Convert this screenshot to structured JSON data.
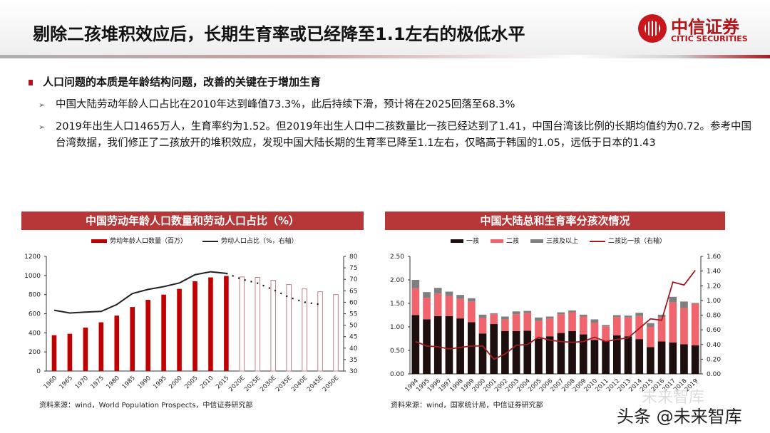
{
  "header": {
    "title": "剔除二孩堆积效应后，长期生育率或已经降至1.1左右的极低水平",
    "logo_cn": "中信证券",
    "logo_en": "CITIC SECURITIES"
  },
  "bullets": {
    "main": "人口问题的本质是年龄结构问题，改善的关键在于增加生育",
    "sub": [
      "中国大陆劳动年龄人口占比在2010年达到峰值73.3%，此后持续下滑，预计将在2025回落至68.3%",
      "2019年出生人口1465万人，生育率约为1.52。但2019年出生人口中二孩数量比一孩已经达到了1.41，中国台湾该比例的长期均值约为0.72。参考中国台湾数据，我们修正了二孩放开的堆积效应，发现中国大陆长期的生育率已降至1.1左右，仅略高于韩国的1.05，远低于日本的1.43"
    ]
  },
  "watermark": {
    "text": "头条 @未来智库",
    "faint": "未来智库"
  },
  "colors": {
    "accent": "#b73638",
    "bar_red": "#c00000",
    "one": "#1e0f0f",
    "two": "#f0646e",
    "three": "#7f7f7f",
    "ratio": "#a01c22"
  },
  "chart_data": [
    {
      "type": "bar+line",
      "title": "中国劳动年龄人口数量和劳动人口占比（%）",
      "source": "资料来源：wind，World Population Prospects，中信证券研究部",
      "categories": [
        "1960",
        "1965",
        "1970",
        "1975",
        "1980",
        "1985",
        "1990",
        "1995",
        "2000",
        "2005",
        "2010",
        "2015",
        "2020E",
        "2025E",
        "2030E",
        "2035E",
        "2040E",
        "2045E",
        "2050E"
      ],
      "series": [
        {
          "name": "劳动年龄人口数量（百万）",
          "type": "bar",
          "axis": "left",
          "values": [
            375,
            390,
            455,
            510,
            580,
            670,
            745,
            800,
            860,
            940,
            980,
            995,
            985,
            980,
            950,
            905,
            860,
            830,
            800
          ],
          "projected_from": "2020E"
        },
        {
          "name": "劳动人口占比（%，右轴）",
          "type": "line",
          "axis": "right",
          "values": [
            56.5,
            55.3,
            55.7,
            56.0,
            59.0,
            63.8,
            65.6,
            66.8,
            68.4,
            72.0,
            73.3,
            72.6,
            70.0,
            68.3,
            65.5,
            62.2,
            60.0,
            59.0,
            null
          ],
          "projected_from": "2020E",
          "projected_style": "dotted"
        }
      ],
      "left_axis": {
        "ylim": [
          0,
          1200
        ],
        "ticks": [
          0,
          200,
          400,
          600,
          800,
          1000,
          1200
        ]
      },
      "right_axis": {
        "ylim": [
          30,
          80
        ],
        "ticks": [
          30,
          35,
          40,
          45,
          50,
          55,
          60,
          65,
          70,
          75,
          80
        ]
      },
      "legend": "top",
      "grid": false
    },
    {
      "type": "stacked-bar+line",
      "title": "中国大陆总和生育率分孩次情况",
      "source": "资料来源：wind，国家统计局，中信证券研究部",
      "categories": [
        "1994",
        "1995",
        "1996",
        "1997",
        "1998",
        "1999",
        "2000",
        "2001",
        "2002",
        "2003",
        "2004",
        "2005",
        "2006",
        "2007",
        "2008",
        "2009",
        "2010",
        "2011",
        "2012",
        "2013",
        "2014",
        "2015",
        "2016",
        "2017",
        "2018",
        "2019"
      ],
      "series": [
        {
          "name": "一孩",
          "type": "bar",
          "axis": "left",
          "values": [
            1.25,
            1.16,
            1.23,
            1.23,
            1.18,
            1.1,
            0.86,
            1.06,
            0.91,
            0.91,
            0.92,
            0.75,
            0.8,
            0.87,
            0.91,
            0.84,
            0.72,
            0.7,
            0.82,
            0.8,
            0.74,
            0.57,
            0.69,
            0.67,
            0.63,
            0.61
          ]
        },
        {
          "name": "二孩",
          "type": "bar",
          "axis": "left",
          "values": [
            0.57,
            0.46,
            0.48,
            0.43,
            0.42,
            0.44,
            0.33,
            0.21,
            0.25,
            0.36,
            0.38,
            0.38,
            0.38,
            0.4,
            0.4,
            0.38,
            0.37,
            0.31,
            0.39,
            0.4,
            0.49,
            0.43,
            0.51,
            0.85,
            0.77,
            0.88
          ]
        },
        {
          "name": "三孩及以上",
          "type": "bar",
          "axis": "left",
          "values": [
            0.18,
            0.12,
            0.12,
            0.09,
            0.08,
            0.07,
            0.07,
            0.02,
            0.06,
            0.06,
            0.04,
            0.07,
            0.04,
            0.04,
            0.04,
            0.04,
            0.07,
            0.03,
            0.04,
            0.04,
            0.07,
            0.08,
            0.06,
            0.12,
            0.14,
            0.02
          ]
        },
        {
          "name": "二孩比一孩（右轴）",
          "type": "line",
          "axis": "right",
          "values": [
            0.44,
            0.38,
            0.37,
            0.34,
            0.36,
            0.38,
            0.38,
            0.2,
            0.27,
            0.39,
            0.4,
            0.5,
            0.46,
            0.44,
            0.43,
            0.44,
            0.5,
            0.44,
            0.47,
            0.49,
            0.62,
            0.75,
            0.73,
            1.25,
            1.21,
            1.41
          ]
        }
      ],
      "left_axis": {
        "ylim": [
          0,
          2.5
        ],
        "ticks": [
          "0.00",
          "0.50",
          "1.00",
          "1.50",
          "2.00",
          "2.50"
        ]
      },
      "right_axis": {
        "ylim": [
          0,
          1.6
        ],
        "ticks": [
          "0.00",
          "0.20",
          "0.40",
          "0.60",
          "0.80",
          "1.00",
          "1.20",
          "1.40",
          "1.60"
        ]
      },
      "legend": "top",
      "grid": false
    }
  ]
}
